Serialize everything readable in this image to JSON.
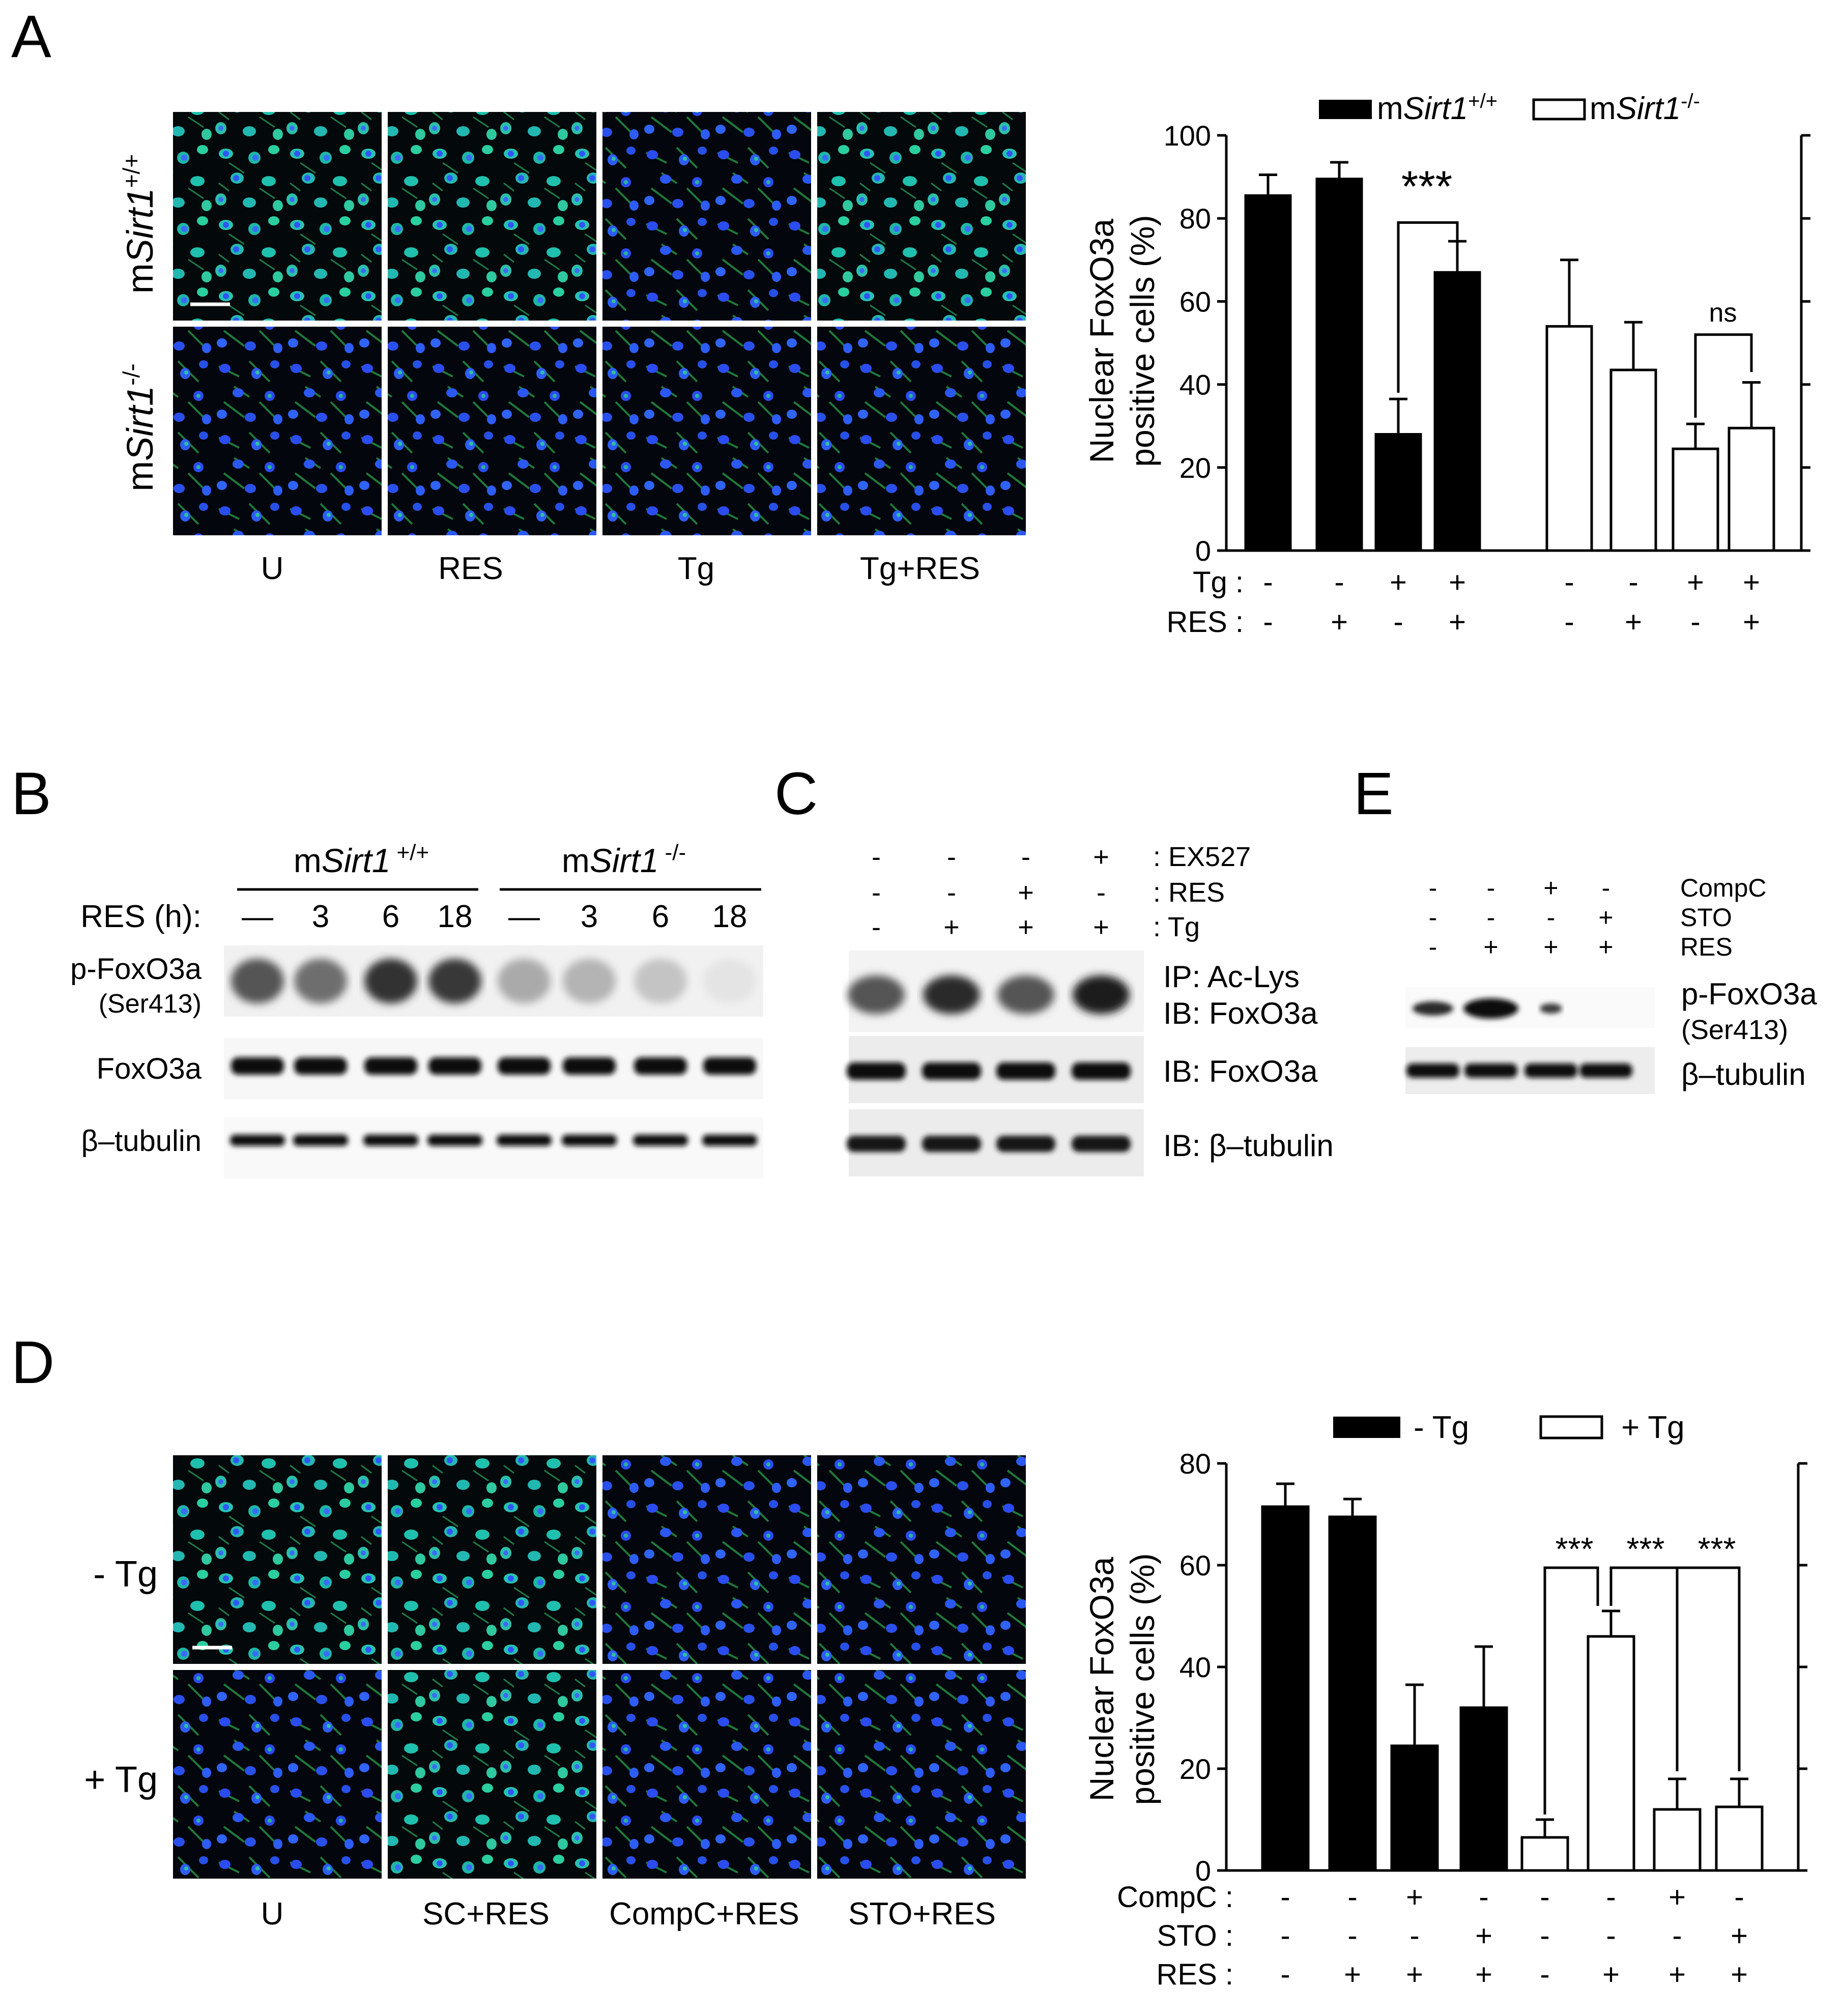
{
  "panels": {
    "A": {
      "label": "A",
      "row_labels": [
        {
          "prefix": "m",
          "gene": "Sirt1",
          "sup": "+/+"
        },
        {
          "prefix": "m",
          "gene": "Sirt1",
          "sup": "-/-"
        }
      ],
      "column_labels": [
        "U",
        "RES",
        "Tg",
        "Tg+RES"
      ]
    },
    "B": {
      "label": "B",
      "group_labels": [
        {
          "prefix": "m",
          "gene": "Sirt1",
          "sup": "+/+"
        },
        {
          "prefix": "m",
          "gene": "Sirt1",
          "sup": "-/-"
        }
      ],
      "time_label": "RES (h):",
      "times": [
        "—",
        "3",
        "6",
        "18",
        "—",
        "3",
        "6",
        "18"
      ],
      "band_labels": [
        "p-FoxO3a",
        "(Ser413)",
        "FoxO3a",
        "β–tubulin"
      ]
    },
    "C": {
      "label": "C",
      "treatments": [
        {
          "name": ": EX527",
          "marks": [
            "-",
            "-",
            "-",
            "+"
          ]
        },
        {
          "name": ": RES",
          "marks": [
            "-",
            "-",
            "+",
            "-"
          ]
        },
        {
          "name": ": Tg",
          "marks": [
            "-",
            "+",
            "+",
            "+"
          ]
        }
      ],
      "band_labels": [
        "IP: Ac-Lys",
        "IB: FoxO3a",
        "IB: FoxO3a",
        "IB: β–tubulin"
      ]
    },
    "E": {
      "label": "E",
      "treatments": [
        {
          "name": "CompC",
          "marks": [
            "-",
            "-",
            "+",
            "-"
          ]
        },
        {
          "name": "STO",
          "marks": [
            "-",
            "-",
            "-",
            "+"
          ]
        },
        {
          "name": "RES",
          "marks": [
            "-",
            "+",
            "+",
            "+"
          ]
        }
      ],
      "band_labels": [
        "p-FoxO3a",
        "(Ser413)",
        "β–tubulin"
      ]
    },
    "D": {
      "label": "D",
      "row_labels": [
        "- Tg",
        "+ Tg"
      ],
      "column_labels": [
        "U",
        "SC+RES",
        "CompC+RES",
        "STO+RES"
      ]
    }
  },
  "chart_data": [
    {
      "type": "bar",
      "panel": "A",
      "ylabel": [
        "Nuclear FoxO3a",
        "positive cells (%)"
      ],
      "ylim": [
        0,
        100
      ],
      "yticks": [
        "0",
        "20",
        "40",
        "60",
        "80",
        "100"
      ],
      "legend": [
        {
          "prefix": "m",
          "gene": "Sirt1",
          "sup": "+/+",
          "fill": "#000000"
        },
        {
          "prefix": "m",
          "gene": "Sirt1",
          "sup": "-/-",
          "fill": "#ffffff"
        }
      ],
      "legend_position": "top",
      "series": [
        {
          "values": [
            85.5,
            89.5,
            28,
            67
          ],
          "errors": [
            5,
            4,
            8.5,
            7.5
          ]
        },
        {
          "values": [
            54,
            43.5,
            24.5,
            29.5
          ],
          "errors": [
            16,
            11.5,
            6,
            11
          ]
        }
      ],
      "conditions": [
        {
          "name": "Tg :",
          "marks": [
            "-",
            "-",
            "+",
            "+",
            "-",
            "-",
            "+",
            "+"
          ]
        },
        {
          "name": "RES :",
          "marks": [
            "-",
            "+",
            "-",
            "+",
            "-",
            "+",
            "-",
            "+"
          ]
        }
      ],
      "annotations": [
        "***",
        "ns"
      ]
    },
    {
      "type": "bar",
      "panel": "D",
      "ylabel": [
        "Nuclear FoxO3a",
        "positive cells (%)"
      ],
      "ylim": [
        0,
        80
      ],
      "yticks": [
        "0",
        "20",
        "40",
        "60",
        "80"
      ],
      "legend": [
        {
          "label": "- Tg",
          "fill": "#000000"
        },
        {
          "label": "+ Tg",
          "fill": "#ffffff"
        }
      ],
      "legend_position": "top",
      "series": [
        {
          "values": [
            71.5,
            69.5,
            24.5,
            32
          ],
          "errors": [
            4.5,
            3.5,
            12,
            12
          ]
        },
        {
          "values": [
            6.5,
            46,
            12,
            12.5
          ],
          "errors": [
            3.5,
            5,
            6,
            5.5
          ]
        }
      ],
      "conditions": [
        {
          "name": "CompC :",
          "marks": [
            "-",
            "-",
            "+",
            "-",
            "-",
            "-",
            "+",
            "-"
          ]
        },
        {
          "name": "STO :",
          "marks": [
            "-",
            "-",
            "-",
            "+",
            "-",
            "-",
            "-",
            "+"
          ]
        },
        {
          "name": "RES :",
          "marks": [
            "-",
            "+",
            "+",
            "+",
            "-",
            "+",
            "+",
            "+"
          ]
        }
      ],
      "annotations": [
        "***",
        "***",
        "***"
      ]
    }
  ]
}
